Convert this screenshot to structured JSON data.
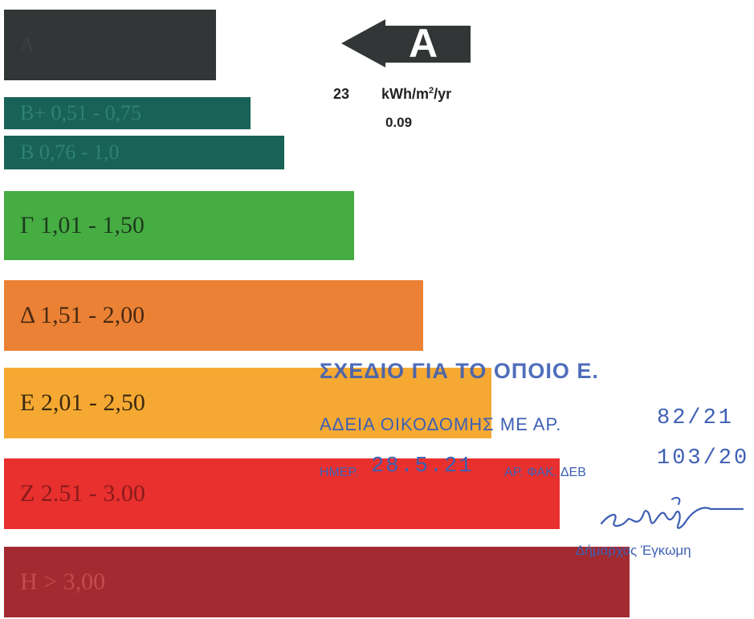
{
  "energy_classes": [
    {
      "label": "A",
      "color": "#333636"
    },
    {
      "label": "B+ 0,51 - 0,75",
      "color": "#186257"
    },
    {
      "label": "B 0,76 - 1,0",
      "color": "#186257"
    },
    {
      "label": "Γ 1,01 - 1,50",
      "color": "#46ad43"
    },
    {
      "label": "Δ 1,51 - 2,00",
      "color": "#eb8134"
    },
    {
      "label": "E 2,01 - 2,50",
      "color": "#f6a932"
    },
    {
      "label": "Z 2.51 - 3.00",
      "color": "#e8302e"
    },
    {
      "label": "H > 3,00",
      "color": "#a22a30"
    }
  ],
  "rating": {
    "letter": "A",
    "arrow_color": "#333636",
    "value": "23",
    "unit_main": "kWh/m",
    "unit_sup": "2",
    "unit_tail": "/yr",
    "ratio": "0.09"
  },
  "stamp": {
    "color": "#3d5fb4",
    "line1": "ΣΧΕΔΙΟ ΓΙΑ ΤΟ ΟΠΟΙΟ Ε.",
    "line2": "ΑΔΕΙΑ ΟΙΚΟΔΟΜΗΣ ΜΕ ΑΡ.",
    "permit_no": "82/21",
    "date_label": "ΗΜΕΡ.",
    "date": "28.5.21",
    "file_label": "ΑΡ. ΦΑΚ. ΔΕΒ",
    "file_no": "103/20",
    "signature_text": "Zafeiri",
    "mayor": "Δήμαρχος Έγκωμη"
  }
}
